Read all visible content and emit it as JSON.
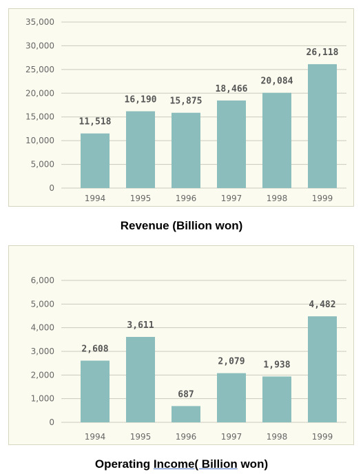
{
  "colors": {
    "bar": "#8bbdbd",
    "grid": "#c9c9bd",
    "panel": "#fbfbef",
    "tick": "#666666",
    "label": "#555555"
  },
  "chart_data": [
    {
      "type": "bar",
      "title": "Revenue (Billion won)",
      "categories": [
        "1994",
        "1995",
        "1996",
        "1997",
        "1998",
        "1999"
      ],
      "values": [
        11518,
        16190,
        15875,
        18466,
        20084,
        26118
      ],
      "value_labels": [
        "11,518",
        "16,190",
        "15,875",
        "18,466",
        "20,084",
        "26,118"
      ],
      "yticks": [
        "0",
        "5,000",
        "10,000",
        "15,000",
        "20,000",
        "25,000",
        "30,000",
        "35,000"
      ],
      "ylim": [
        0,
        35000
      ],
      "grid": true
    },
    {
      "type": "bar",
      "title_parts": [
        "Operating ",
        "Income( Billion",
        " won)"
      ],
      "categories": [
        "1994",
        "1995",
        "1996",
        "1997",
        "1998",
        "1999"
      ],
      "values": [
        2608,
        3611,
        687,
        2079,
        1938,
        4482
      ],
      "value_labels": [
        "2,608",
        "3,611",
        "687",
        "2,079",
        "1,938",
        "4,482"
      ],
      "yticks": [
        "0",
        "1,000",
        "2,000",
        "3,000",
        "4,000",
        "5,000",
        "6,000"
      ],
      "ylim": [
        0,
        6000
      ],
      "grid": true
    }
  ]
}
